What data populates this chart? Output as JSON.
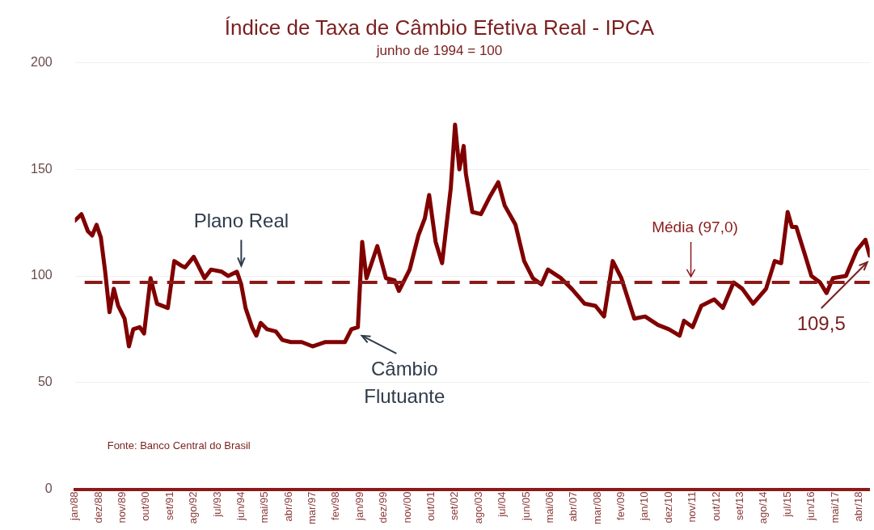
{
  "chart_data": {
    "type": "line",
    "title": "Índice de Taxa de Câmbio Efetiva Real - IPCA",
    "subtitle": "junho de 1994 = 100",
    "x": [
      "1988-01",
      "1988-04",
      "1988-07",
      "1988-09",
      "1988-11",
      "1989-01",
      "1989-03",
      "1989-05",
      "1989-07",
      "1989-09",
      "1989-12",
      "1990-02",
      "1990-04",
      "1990-07",
      "1990-09",
      "1990-12",
      "1991-03",
      "1991-08",
      "1991-11",
      "1992-02",
      "1992-04",
      "1992-08",
      "1993-01",
      "1993-04",
      "1993-09",
      "1993-12",
      "1994-04",
      "1994-06",
      "1994-08",
      "1994-11",
      "1995-01",
      "1995-03",
      "1995-06",
      "1995-10",
      "1996-01",
      "1996-05",
      "1996-10",
      "1997-03",
      "1997-09",
      "1998-01",
      "1998-06",
      "1998-09",
      "1998-12",
      "1999-02",
      "1999-04",
      "1999-09",
      "2000-01",
      "2000-05",
      "2000-07",
      "2000-12",
      "2001-04",
      "2001-07",
      "2001-09",
      "2001-12",
      "2002-03",
      "2002-07",
      "2002-09",
      "2002-11",
      "2003-01",
      "2003-02",
      "2003-05",
      "2003-09",
      "2004-01",
      "2004-05",
      "2004-08",
      "2005-01",
      "2005-05",
      "2005-09",
      "2006-01",
      "2006-04",
      "2006-10",
      "2007-03",
      "2007-09",
      "2008-02",
      "2008-06",
      "2008-10",
      "2009-02",
      "2009-08",
      "2010-01",
      "2010-07",
      "2010-12",
      "2011-05",
      "2011-07",
      "2011-11",
      "2012-03",
      "2012-09",
      "2013-01",
      "2013-06",
      "2013-10",
      "2014-03",
      "2014-09",
      "2015-01",
      "2015-04",
      "2015-07",
      "2015-09",
      "2015-11",
      "2016-03",
      "2016-06",
      "2016-10",
      "2017-01",
      "2017-04",
      "2017-10",
      "2018-03",
      "2018-07",
      "2018-09"
    ],
    "series": [
      {
        "color": "#800000",
        "values": [
          126,
          129,
          121,
          119,
          124,
          118,
          102,
          83,
          94,
          86,
          80,
          67,
          75,
          76,
          73,
          99,
          87,
          85,
          107,
          105,
          104,
          109,
          99,
          103,
          102,
          100,
          102,
          96,
          85,
          76,
          72,
          78,
          75,
          74,
          70,
          69,
          69,
          67,
          69,
          69,
          69,
          75,
          76,
          116,
          99,
          114,
          99,
          98,
          93,
          103,
          119,
          127,
          138,
          116,
          106,
          141,
          171,
          150,
          161,
          148,
          130,
          129,
          137,
          144,
          133,
          124,
          107,
          99,
          96,
          103,
          99,
          94,
          87,
          86,
          81,
          107,
          99,
          80,
          81,
          77,
          75,
          72,
          79,
          76,
          86,
          89,
          85,
          97,
          94,
          87,
          94,
          107,
          106,
          130,
          123,
          123,
          110,
          100,
          97,
          92,
          99,
          100,
          112,
          117,
          109.5
        ]
      }
    ],
    "xlim": [
      "1988-01",
      "2018-09"
    ],
    "xticks": [
      {
        "value": "1988-01",
        "label": "jan/88"
      },
      {
        "value": "1988-12",
        "label": "dez/88"
      },
      {
        "value": "1989-11",
        "label": "nov/89"
      },
      {
        "value": "1990-10",
        "label": "out/90"
      },
      {
        "value": "1991-09",
        "label": "set/91"
      },
      {
        "value": "1992-08",
        "label": "ago/92"
      },
      {
        "value": "1993-07",
        "label": "jul/93"
      },
      {
        "value": "1994-06",
        "label": "jun/94"
      },
      {
        "value": "1995-05",
        "label": "mai/95"
      },
      {
        "value": "1996-04",
        "label": "abr/96"
      },
      {
        "value": "1997-03",
        "label": "mar/97"
      },
      {
        "value": "1998-02",
        "label": "fev/98"
      },
      {
        "value": "1999-01",
        "label": "jan/99"
      },
      {
        "value": "1999-12",
        "label": "dez/99"
      },
      {
        "value": "2000-11",
        "label": "nov/00"
      },
      {
        "value": "2001-10",
        "label": "out/01"
      },
      {
        "value": "2002-09",
        "label": "set/02"
      },
      {
        "value": "2003-08",
        "label": "ago/03"
      },
      {
        "value": "2004-07",
        "label": "jul/04"
      },
      {
        "value": "2005-06",
        "label": "jun/05"
      },
      {
        "value": "2006-05",
        "label": "mai/06"
      },
      {
        "value": "2007-04",
        "label": "abr/07"
      },
      {
        "value": "2008-03",
        "label": "mar/08"
      },
      {
        "value": "2009-02",
        "label": "fev/09"
      },
      {
        "value": "2010-01",
        "label": "jan/10"
      },
      {
        "value": "2010-12",
        "label": "dez/10"
      },
      {
        "value": "2011-11",
        "label": "nov/11"
      },
      {
        "value": "2012-10",
        "label": "out/12"
      },
      {
        "value": "2013-09",
        "label": "set/13"
      },
      {
        "value": "2014-08",
        "label": "ago/14"
      },
      {
        "value": "2015-07",
        "label": "jul/15"
      },
      {
        "value": "2016-06",
        "label": "jun/16"
      },
      {
        "value": "2017-05",
        "label": "mai/17"
      },
      {
        "value": "2018-04",
        "label": "abr/18"
      }
    ],
    "ylim": [
      0,
      200
    ],
    "yticks": [
      0,
      50,
      100,
      150,
      200
    ],
    "grid": "y",
    "legend": false,
    "marker": "none",
    "line_style": "solid",
    "ref_lines": [
      {
        "axis": "y",
        "value": 97,
        "label": "Média (97,0)",
        "color": "#8b1a1a",
        "line_style": "dashed"
      }
    ],
    "annotations": [
      {
        "text": "Plano Real",
        "x": "1994-06",
        "y": 101
      },
      {
        "text": "Câmbio Flutuante",
        "x": "1999-01",
        "y": 75
      },
      {
        "text": "109,5",
        "x": "2018-09",
        "y": 109.5
      },
      "Fonte: Banco Central do Brasil"
    ]
  }
}
